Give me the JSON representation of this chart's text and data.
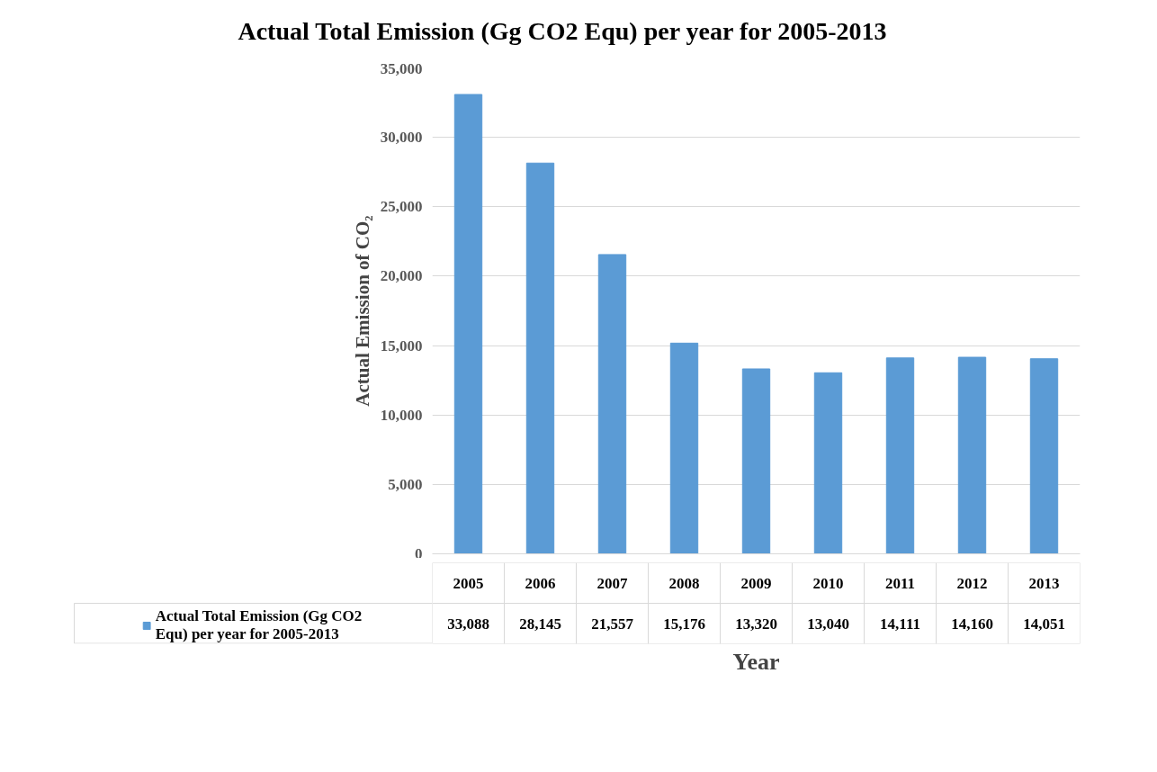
{
  "chart_data": {
    "type": "bar",
    "title": "Actual Total Emission (Gg CO2 Equ) per year for 2005-2013",
    "xlabel": "Year",
    "ylabel": "Actual Emission of CO₂",
    "categories": [
      "2005",
      "2006",
      "2007",
      "2008",
      "2009",
      "2010",
      "2011",
      "2012",
      "2013"
    ],
    "series": [
      {
        "name": "Actual Total Emission (Gg CO2 Equ) per year for 2005-2013",
        "color": "#5b9bd5",
        "values": [
          33088,
          28145,
          21557,
          15176,
          13320,
          13040,
          14111,
          14160,
          14051
        ],
        "value_labels": [
          "33,088",
          "28,145",
          "21,557",
          "15,176",
          "13,320",
          "13,040",
          "14,111",
          "14,160",
          "14,051"
        ]
      }
    ],
    "ylim": [
      0,
      35000
    ],
    "yticks": [
      {
        "value": 0,
        "label": "0"
      },
      {
        "value": 5000,
        "label": "5,000"
      },
      {
        "value": 10000,
        "label": "10,000"
      },
      {
        "value": 15000,
        "label": "15,000"
      },
      {
        "value": 20000,
        "label": "20,000"
      },
      {
        "value": 25000,
        "label": "25,000"
      },
      {
        "value": 30000,
        "label": "30,000"
      },
      {
        "value": 35000,
        "label": "35,000"
      }
    ],
    "grid": "y",
    "legend": "bottom"
  }
}
